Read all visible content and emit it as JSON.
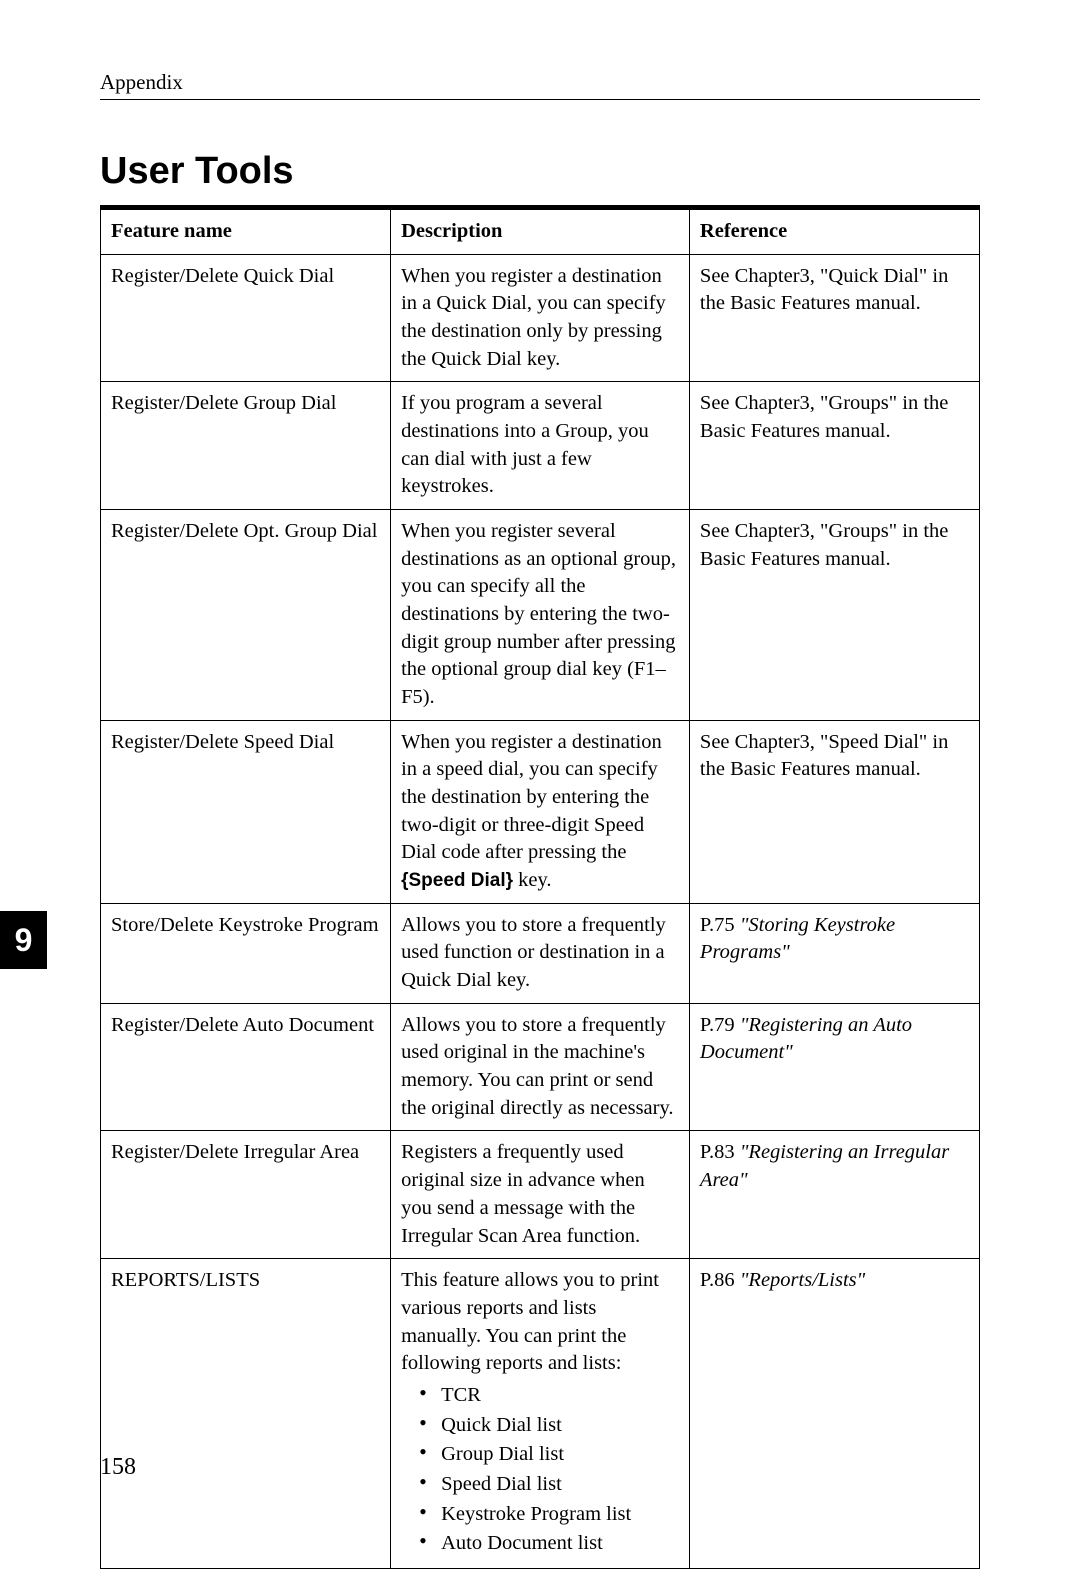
{
  "appendix_label": "Appendix",
  "section_title": "User Tools",
  "page_tab": "9",
  "page_number": "158",
  "table": {
    "headers": {
      "feature": "Feature name",
      "description": "Description",
      "reference": "Reference"
    },
    "rows": [
      {
        "feature": "Register/Delete Quick Dial",
        "description": "When you register a destination in a Quick Dial, you can specify the destination only by pressing the Quick Dial key.",
        "reference": "See Chapter3, \"Quick Dial\" in the Basic Features manual."
      },
      {
        "feature": "Register/Delete Group Dial",
        "description": "If you program a several destinations into a Group, you can dial with just a few keystrokes.",
        "reference": "See Chapter3, \"Groups\" in the Basic Features manual."
      },
      {
        "feature": "Register/Delete Opt. Group Dial",
        "description": "When you register several destinations as an optional group, you can specify all the destinations by entering the two-digit group number after pressing the optional group dial key (F1–F5).",
        "reference": "See Chapter3, \"Groups\" in the Basic Features manual."
      },
      {
        "feature": "Register/Delete Speed Dial",
        "description_pre": "When you register a destination in a speed dial, you can specify the destination by entering the two-digit or three-digit Speed Dial code after pressing the ",
        "keycap_open": "{",
        "keycap_text": "Speed Dial",
        "keycap_close": "}",
        "description_post": " key.",
        "reference": "See Chapter3, \"Speed Dial\" in the Basic Features manual."
      },
      {
        "feature": "Store/Delete Keystroke Program",
        "description": "Allows you to store a frequently used function or destination in a Quick Dial key.",
        "ref_prefix": "P.75 ",
        "ref_italic": "\"Storing Keystroke Programs\""
      },
      {
        "feature": "Register/Delete Auto Document",
        "description": "Allows you to store a frequently used original in the machine's memory. You can print or send the original directly as necessary.",
        "ref_prefix": "P.79 ",
        "ref_italic": "\"Registering an Auto Document\""
      },
      {
        "feature": "Register/Delete Irregular Area",
        "description": "Registers a frequently used original size in advance when you send a message with the Irregular Scan Area function.",
        "ref_prefix": "P.83 ",
        "ref_italic": "\"Registering an Irregular Area\""
      },
      {
        "feature": "REPORTS/LISTS",
        "description_intro": "This feature allows you to print various reports and lists manually. You can print the following reports and lists:",
        "list": [
          "TCR",
          "Quick Dial list",
          "Group Dial list",
          "Speed Dial list",
          "Keystroke Program list",
          "Auto Document list"
        ],
        "ref_prefix": "P.86 ",
        "ref_italic": "\"Reports/Lists\""
      }
    ]
  }
}
